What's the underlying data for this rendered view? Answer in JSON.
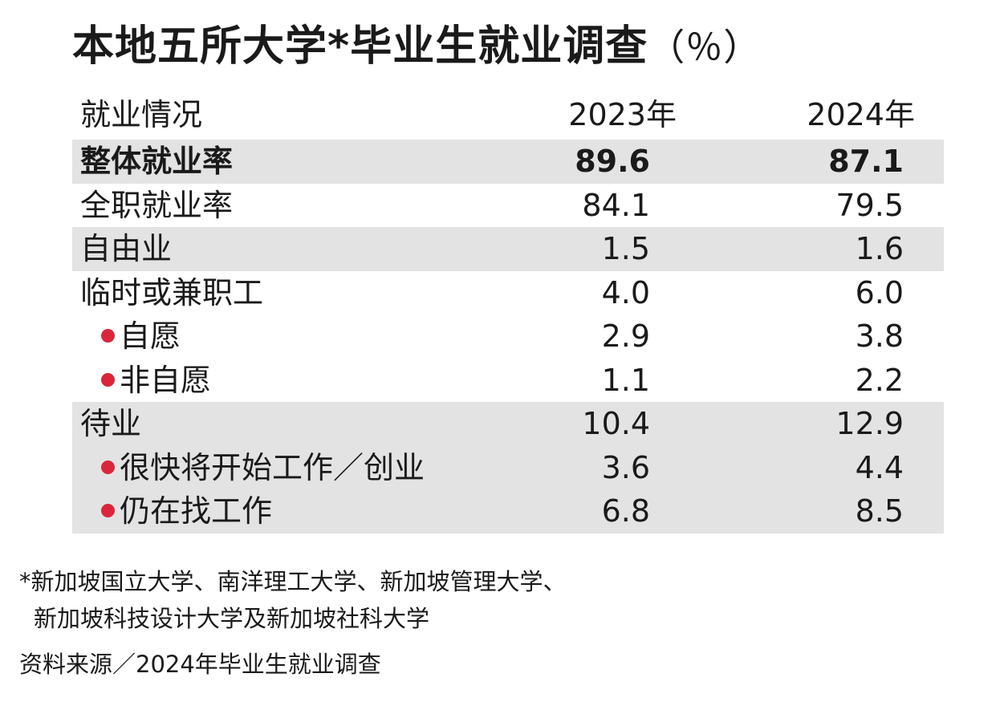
{
  "chart_data": {
    "type": "table",
    "title": "本地五所大学*毕业生就业调查",
    "unit": "（％）",
    "columns": [
      "就业情况",
      "2023年",
      "2024年"
    ],
    "rows": [
      {
        "label": "整体就业率",
        "values": [
          "89.6",
          "87.1"
        ],
        "bold": true,
        "shaded": true,
        "sub": false
      },
      {
        "label": "全职就业率",
        "values": [
          "84.1",
          "79.5"
        ],
        "bold": false,
        "shaded": false,
        "sub": false
      },
      {
        "label": "自由业",
        "values": [
          "1.5",
          "1.6"
        ],
        "bold": false,
        "shaded": true,
        "sub": false
      },
      {
        "label": "临时或兼职工",
        "values": [
          "4.0",
          "6.0"
        ],
        "bold": false,
        "shaded": false,
        "sub": false
      },
      {
        "label": "自愿",
        "values": [
          "2.9",
          "3.8"
        ],
        "bold": false,
        "shaded": false,
        "sub": true
      },
      {
        "label": "非自愿",
        "values": [
          "1.1",
          "2.2"
        ],
        "bold": false,
        "shaded": false,
        "sub": true
      },
      {
        "label": "待业",
        "values": [
          "10.4",
          "12.9"
        ],
        "bold": false,
        "shaded": true,
        "sub": false
      },
      {
        "label": "很快将开始工作／创业",
        "values": [
          "3.6",
          "4.4"
        ],
        "bold": false,
        "shaded": true,
        "sub": true
      },
      {
        "label": "仍在找工作",
        "values": [
          "6.8",
          "8.5"
        ],
        "bold": false,
        "shaded": true,
        "sub": true
      }
    ],
    "bullet_color": "#d9263a",
    "shade_color": "#e3e3e3"
  },
  "footnote": {
    "line1": "*新加坡国立大学、南洋理工大学、新加坡管理大学、",
    "line2": "新加坡科技设计大学及新加坡社科大学"
  },
  "source": "资料来源／2024年毕业生就业调查"
}
